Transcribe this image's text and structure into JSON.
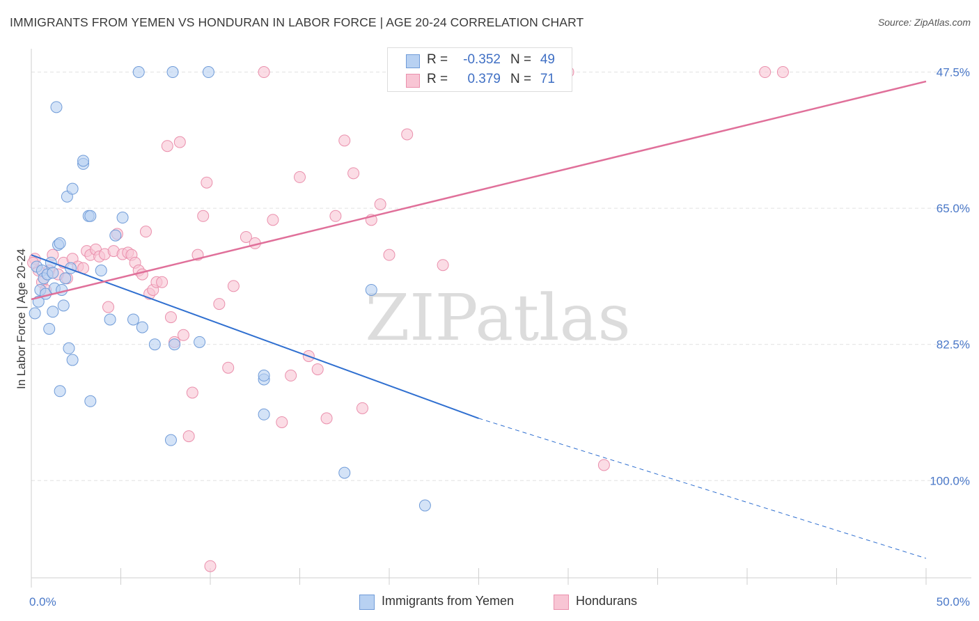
{
  "header": {
    "title": "IMMIGRANTS FROM YEMEN VS HONDURAN IN LABOR FORCE | AGE 20-24 CORRELATION CHART",
    "source": "Source: ZipAtlas.com"
  },
  "legend_top": {
    "rows": [
      {
        "r_label": "R =",
        "r_value": "-0.352",
        "n_label": "N =",
        "n_value": "49"
      },
      {
        "r_label": "R =",
        "r_value": "0.379",
        "n_label": "N =",
        "n_value": "71"
      }
    ]
  },
  "legend_bottom": {
    "yemen": "Immigrants from Yemen",
    "honduran": "Hondurans"
  },
  "colors": {
    "yemen_fill": "#b8d1f2",
    "yemen_stroke": "#6f9bd8",
    "yemen_line": "#2f6fd0",
    "honduran_fill": "#f8c5d4",
    "honduran_stroke": "#ea8fac",
    "honduran_line": "#e0709a",
    "tick_text": "#4a78c8",
    "grid": "#e2e2e2"
  },
  "chart_data": {
    "type": "scatter",
    "ylabel": "In Labor Force | Age 20-24",
    "x_tick_labels": [
      "0.0%",
      "50.0%"
    ],
    "y_tick_labels": [
      "100.0%",
      "82.5%",
      "65.0%",
      "47.5%"
    ],
    "xlim": [
      0,
      50
    ],
    "ylim": [
      35,
      103
    ],
    "y_gridlines": [
      47.5,
      65.0,
      82.5,
      100.0
    ],
    "watermark": "ZIPatlas",
    "series": [
      {
        "name": "Immigrants from Yemen",
        "trend": {
          "x0": 0,
          "y0": 76.5,
          "x1": 25,
          "y1": 55.5,
          "dashed_to_x": 50,
          "dashed_to_y": 37.5
        },
        "points": [
          [
            0.2,
            69.0
          ],
          [
            0.3,
            75.0
          ],
          [
            0.4,
            70.5
          ],
          [
            0.5,
            72.0
          ],
          [
            0.6,
            74.5
          ],
          [
            0.7,
            73.5
          ],
          [
            0.8,
            71.5
          ],
          [
            0.9,
            74.0
          ],
          [
            1.0,
            67.0
          ],
          [
            1.1,
            75.5
          ],
          [
            1.2,
            69.2
          ],
          [
            1.2,
            74.2
          ],
          [
            1.3,
            72.2
          ],
          [
            1.4,
            95.5
          ],
          [
            1.5,
            77.8
          ],
          [
            1.6,
            78.0
          ],
          [
            1.6,
            59.0
          ],
          [
            1.7,
            72.0
          ],
          [
            1.8,
            70.0
          ],
          [
            1.9,
            73.5
          ],
          [
            2.0,
            84.0
          ],
          [
            2.1,
            64.5
          ],
          [
            2.2,
            74.8
          ],
          [
            2.3,
            85.0
          ],
          [
            2.3,
            63.0
          ],
          [
            2.9,
            88.2
          ],
          [
            2.9,
            88.6
          ],
          [
            3.2,
            81.5
          ],
          [
            3.3,
            81.5
          ],
          [
            3.3,
            57.7
          ],
          [
            3.9,
            74.5
          ],
          [
            4.4,
            68.2
          ],
          [
            4.7,
            79.0
          ],
          [
            5.1,
            81.3
          ],
          [
            5.7,
            68.2
          ],
          [
            6.0,
            100.0
          ],
          [
            6.2,
            67.2
          ],
          [
            6.9,
            65.0
          ],
          [
            7.8,
            52.7
          ],
          [
            7.9,
            100.0
          ],
          [
            8.0,
            65.0
          ],
          [
            9.4,
            65.3
          ],
          [
            9.9,
            100.0
          ],
          [
            13.0,
            60.5
          ],
          [
            13.0,
            61.0
          ],
          [
            13.0,
            56.0
          ],
          [
            17.5,
            48.5
          ],
          [
            19.0,
            72.0
          ],
          [
            22.0,
            44.3
          ]
        ]
      },
      {
        "name": "Hondurans",
        "trend": {
          "x0": 0,
          "y0": 70.8,
          "x1": 50,
          "y1": 98.8
        },
        "points": [
          [
            0.2,
            76.0
          ],
          [
            0.4,
            74.5
          ],
          [
            0.6,
            73.0
          ],
          [
            0.8,
            72.0
          ],
          [
            1.0,
            74.5
          ],
          [
            1.2,
            76.5
          ],
          [
            1.5,
            74.0
          ],
          [
            1.8,
            75.5
          ],
          [
            2.0,
            73.5
          ],
          [
            2.3,
            76.0
          ],
          [
            2.6,
            75.0
          ],
          [
            2.9,
            74.8
          ],
          [
            3.1,
            77.0
          ],
          [
            3.3,
            76.5
          ],
          [
            3.6,
            77.2
          ],
          [
            3.8,
            76.3
          ],
          [
            4.1,
            76.6
          ],
          [
            4.3,
            69.8
          ],
          [
            4.6,
            77.0
          ],
          [
            4.8,
            79.2
          ],
          [
            5.1,
            76.6
          ],
          [
            5.4,
            76.8
          ],
          [
            5.6,
            76.5
          ],
          [
            5.8,
            75.5
          ],
          [
            6.0,
            74.5
          ],
          [
            6.2,
            74.0
          ],
          [
            6.4,
            79.5
          ],
          [
            6.6,
            71.5
          ],
          [
            6.8,
            72.0
          ],
          [
            7.0,
            73.0
          ],
          [
            7.3,
            73.0
          ],
          [
            7.6,
            90.5
          ],
          [
            7.8,
            68.5
          ],
          [
            8.0,
            65.3
          ],
          [
            8.3,
            91.0
          ],
          [
            8.5,
            66.2
          ],
          [
            8.8,
            53.2
          ],
          [
            9.0,
            58.8
          ],
          [
            9.3,
            76.5
          ],
          [
            9.6,
            81.5
          ],
          [
            9.8,
            85.8
          ],
          [
            10.0,
            36.5
          ],
          [
            10.5,
            70.2
          ],
          [
            11.0,
            62.0
          ],
          [
            11.3,
            72.5
          ],
          [
            12.0,
            78.8
          ],
          [
            12.5,
            78.0
          ],
          [
            13.0,
            100.0
          ],
          [
            13.5,
            81.0
          ],
          [
            14.0,
            55.0
          ],
          [
            14.5,
            61.0
          ],
          [
            15.0,
            86.5
          ],
          [
            15.5,
            63.5
          ],
          [
            16.0,
            61.8
          ],
          [
            16.5,
            55.5
          ],
          [
            17.0,
            81.5
          ],
          [
            17.5,
            91.2
          ],
          [
            18.0,
            87.0
          ],
          [
            18.5,
            56.8
          ],
          [
            19.0,
            81.0
          ],
          [
            19.5,
            83.0
          ],
          [
            20.0,
            76.5
          ],
          [
            21.0,
            92.0
          ],
          [
            22.0,
            100.0
          ],
          [
            23.0,
            75.2
          ],
          [
            26.0,
            100.0
          ],
          [
            30.0,
            100.0
          ],
          [
            32.0,
            49.5
          ],
          [
            41.0,
            100.0
          ],
          [
            42.0,
            100.0
          ],
          [
            0.1,
            75.5
          ]
        ]
      }
    ]
  }
}
